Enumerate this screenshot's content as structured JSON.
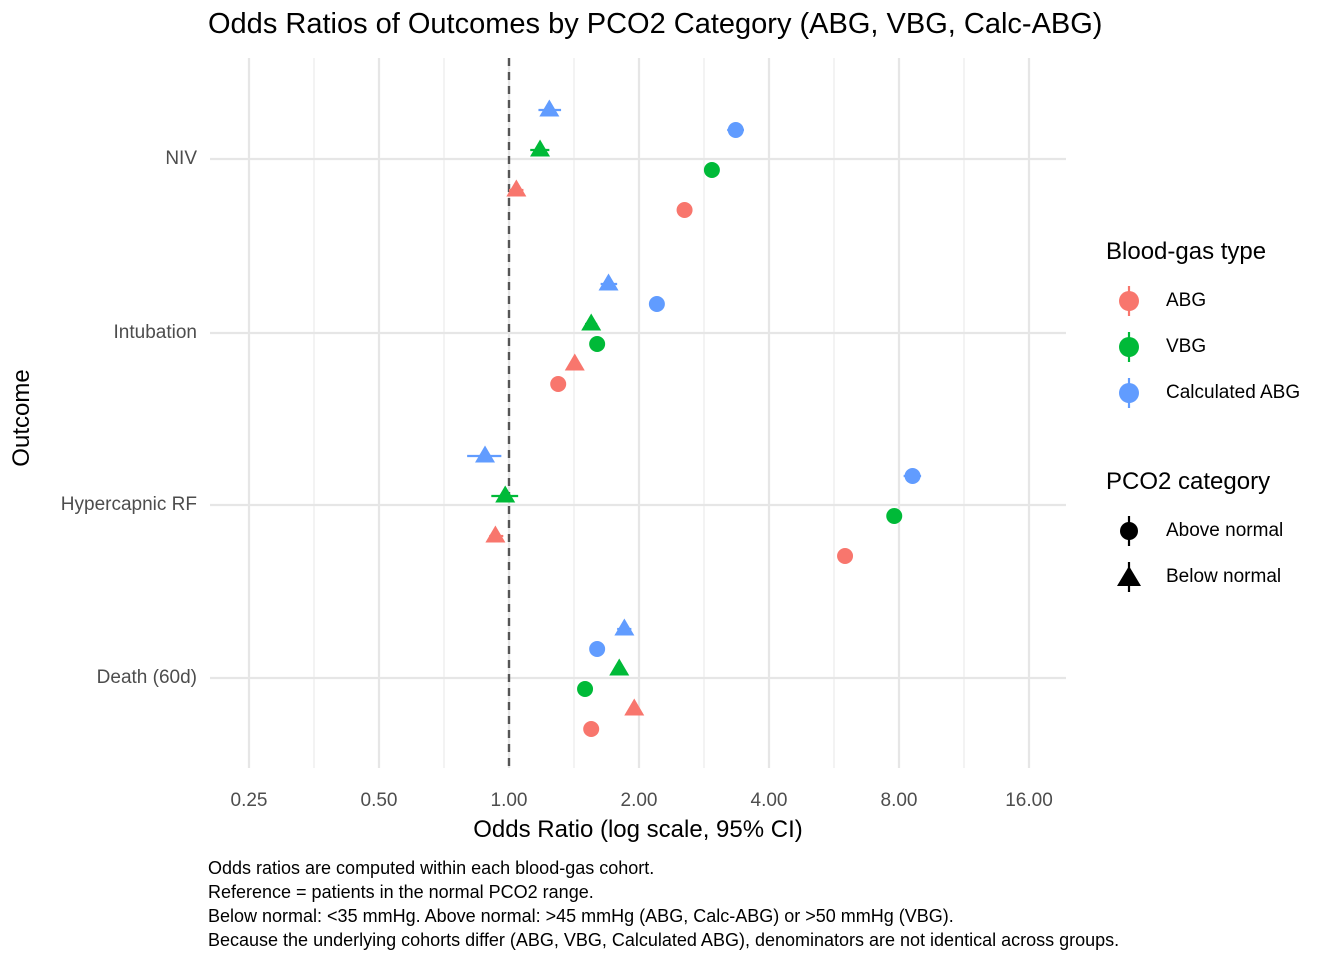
{
  "chart_data": {
    "type": "scatter",
    "title": "Odds Ratios of Outcomes by PCO2 Category (ABG, VBG, Calc-ABG)",
    "xlabel": "Odds Ratio (log scale, 95% CI)",
    "ylabel": "Outcome",
    "x_scale": "log2",
    "xlim": [
      0.25,
      16
    ],
    "x_ticks": [
      "0.25",
      "0.50",
      "1.00",
      "2.00",
      "4.00",
      "8.00",
      "16.00"
    ],
    "reference_line": 1.0,
    "categories": [
      "NIV",
      "Intubation",
      "Hypercapnic RF",
      "Death (60d)"
    ],
    "legend_blood_gas": {
      "title": "Blood-gas type",
      "items": [
        {
          "label": "ABG",
          "color": "#F8766D"
        },
        {
          "label": "VBG",
          "color": "#00BA38"
        },
        {
          "label": "Calculated ABG",
          "color": "#619CFF"
        }
      ]
    },
    "legend_pco2": {
      "title": "PCO2 category",
      "items": [
        {
          "label": "Above normal",
          "shape": "circle"
        },
        {
          "label": "Below normal",
          "shape": "triangle"
        }
      ]
    },
    "series": [
      {
        "outcome": "NIV",
        "blood_gas": "ABG",
        "category": "Above normal",
        "or": 2.55,
        "ci": [
          2.5,
          2.6
        ]
      },
      {
        "outcome": "NIV",
        "blood_gas": "ABG",
        "category": "Below normal",
        "or": 1.04,
        "ci": [
          1.0,
          1.08
        ]
      },
      {
        "outcome": "NIV",
        "blood_gas": "VBG",
        "category": "Above normal",
        "or": 2.95,
        "ci": [
          2.9,
          3.0
        ]
      },
      {
        "outcome": "NIV",
        "blood_gas": "VBG",
        "category": "Below normal",
        "or": 1.18,
        "ci": [
          1.12,
          1.24
        ]
      },
      {
        "outcome": "NIV",
        "blood_gas": "Calculated ABG",
        "category": "Above normal",
        "or": 3.35,
        "ci": [
          3.2,
          3.5
        ]
      },
      {
        "outcome": "NIV",
        "blood_gas": "Calculated ABG",
        "category": "Below normal",
        "or": 1.24,
        "ci": [
          1.17,
          1.32
        ]
      },
      {
        "outcome": "Intubation",
        "blood_gas": "ABG",
        "category": "Above normal",
        "or": 1.3,
        "ci": [
          1.28,
          1.32
        ]
      },
      {
        "outcome": "Intubation",
        "blood_gas": "ABG",
        "category": "Below normal",
        "or": 1.42,
        "ci": [
          1.38,
          1.46
        ]
      },
      {
        "outcome": "Intubation",
        "blood_gas": "VBG",
        "category": "Above normal",
        "or": 1.6,
        "ci": [
          1.57,
          1.63
        ]
      },
      {
        "outcome": "Intubation",
        "blood_gas": "VBG",
        "category": "Below normal",
        "or": 1.55,
        "ci": [
          1.5,
          1.6
        ]
      },
      {
        "outcome": "Intubation",
        "blood_gas": "Calculated ABG",
        "category": "Above normal",
        "or": 2.2,
        "ci": [
          2.12,
          2.28
        ]
      },
      {
        "outcome": "Intubation",
        "blood_gas": "Calculated ABG",
        "category": "Below normal",
        "or": 1.7,
        "ci": [
          1.63,
          1.78
        ]
      },
      {
        "outcome": "Hypercapnic RF",
        "blood_gas": "ABG",
        "category": "Above normal",
        "or": 6.0,
        "ci": [
          5.9,
          6.1
        ]
      },
      {
        "outcome": "Hypercapnic RF",
        "blood_gas": "ABG",
        "category": "Below normal",
        "or": 0.93,
        "ci": [
          0.9,
          0.97
        ]
      },
      {
        "outcome": "Hypercapnic RF",
        "blood_gas": "VBG",
        "category": "Above normal",
        "or": 7.8,
        "ci": [
          7.7,
          7.9
        ]
      },
      {
        "outcome": "Hypercapnic RF",
        "blood_gas": "VBG",
        "category": "Below normal",
        "or": 0.98,
        "ci": [
          0.91,
          1.05
        ]
      },
      {
        "outcome": "Hypercapnic RF",
        "blood_gas": "Calculated ABG",
        "category": "Above normal",
        "or": 8.6,
        "ci": [
          8.2,
          9.0
        ]
      },
      {
        "outcome": "Hypercapnic RF",
        "blood_gas": "Calculated ABG",
        "category": "Below normal",
        "or": 0.88,
        "ci": [
          0.8,
          0.96
        ]
      },
      {
        "outcome": "Death (60d)",
        "blood_gas": "ABG",
        "category": "Above normal",
        "or": 1.55,
        "ci": [
          1.53,
          1.57
        ]
      },
      {
        "outcome": "Death (60d)",
        "blood_gas": "ABG",
        "category": "Below normal",
        "or": 1.95,
        "ci": [
          1.92,
          1.98
        ]
      },
      {
        "outcome": "Death (60d)",
        "blood_gas": "VBG",
        "category": "Above normal",
        "or": 1.5,
        "ci": [
          1.48,
          1.52
        ]
      },
      {
        "outcome": "Death (60d)",
        "blood_gas": "VBG",
        "category": "Below normal",
        "or": 1.8,
        "ci": [
          1.77,
          1.83
        ]
      },
      {
        "outcome": "Death (60d)",
        "blood_gas": "Calculated ABG",
        "category": "Above normal",
        "or": 1.6,
        "ci": [
          1.56,
          1.64
        ]
      },
      {
        "outcome": "Death (60d)",
        "blood_gas": "Calculated ABG",
        "category": "Below normal",
        "or": 1.85,
        "ci": [
          1.78,
          1.92
        ]
      }
    ]
  },
  "caption": [
    "Odds ratios are computed within each blood-gas cohort.",
    "Reference = patients in the normal PCO2 range.",
    "Below normal: <35 mmHg. Above normal: >45 mmHg (ABG, Calc-ABG) or >50 mmHg (VBG).",
    "Because the underlying cohorts differ (ABG, VBG, Calculated ABG), denominators are not identical across groups."
  ]
}
